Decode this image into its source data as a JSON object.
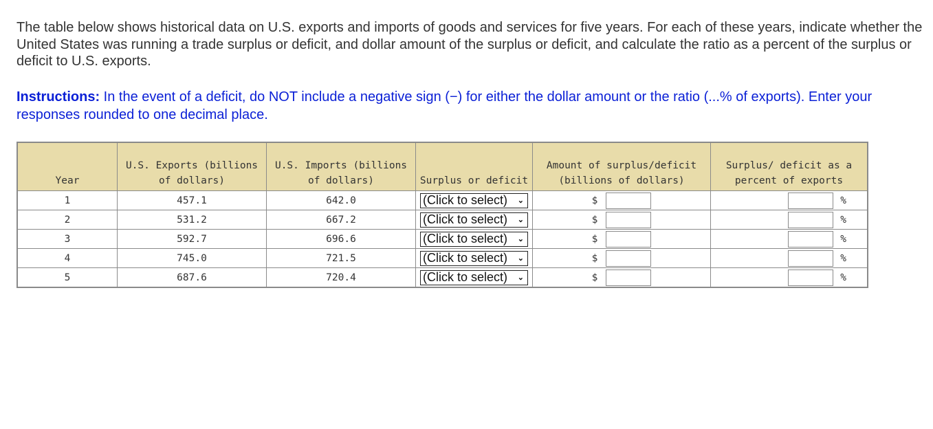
{
  "intro_text": "The table below shows historical data on U.S. exports and imports of goods and services for five years. For each of these years, indicate whether the United States was running a trade surplus or deficit, and dollar amount of the surplus or deficit, and calculate the ratio as a percent of the surplus or deficit to U.S. exports.",
  "instructions": {
    "label": "Instructions:",
    "text": " In the event of a deficit, do NOT include a negative sign (−) for either the dollar amount or the ratio (...% of exports). Enter your responses rounded to one decimal place."
  },
  "table": {
    "headers": {
      "year": "Year",
      "exports": "U.S. Exports (billions of dollars)",
      "imports": "U.S. Imports (billions of dollars)",
      "surplus_deficit": "Surplus or deficit",
      "amount": "Amount of surplus/deficit (billions of dollars)",
      "percent": "Surplus/ deficit as a percent of exports"
    },
    "rows": [
      {
        "year": "1",
        "exports": "457.1",
        "imports": "642.0",
        "select": "(Click to select)",
        "currency": "$",
        "amount": "",
        "percent": "",
        "pct_sign": "%"
      },
      {
        "year": "2",
        "exports": "531.2",
        "imports": "667.2",
        "select": "(Click to select)",
        "currency": "$",
        "amount": "",
        "percent": "",
        "pct_sign": "%"
      },
      {
        "year": "3",
        "exports": "592.7",
        "imports": "696.6",
        "select": "(Click to select)",
        "currency": "$",
        "amount": "",
        "percent": "",
        "pct_sign": "%"
      },
      {
        "year": "4",
        "exports": "745.0",
        "imports": "721.5",
        "select": "(Click to select)",
        "currency": "$",
        "amount": "",
        "percent": "",
        "pct_sign": "%"
      },
      {
        "year": "5",
        "exports": "687.6",
        "imports": "720.4",
        "select": "(Click to select)",
        "currency": "$",
        "amount": "",
        "percent": "",
        "pct_sign": "%"
      }
    ],
    "colors": {
      "header_bg": "#e8dcaa",
      "border": "#8a8a8a",
      "instructions_text": "#0a1fd6"
    }
  }
}
